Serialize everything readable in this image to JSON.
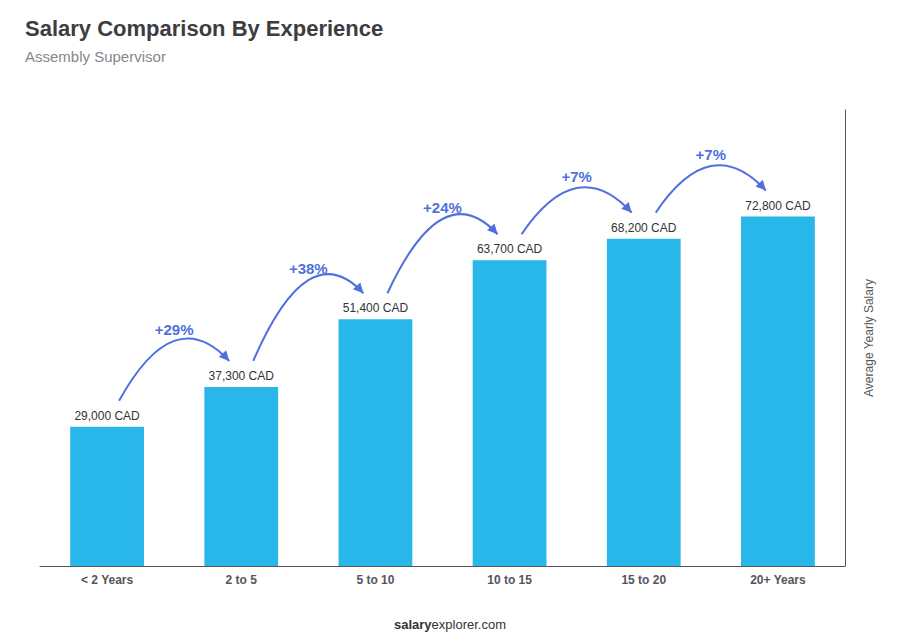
{
  "chart_data": {
    "type": "bar",
    "title": "Salary Comparison By Experience",
    "subtitle": "Assembly Supervisor",
    "categories": [
      "< 2 Years",
      "2 to 5",
      "5 to 10",
      "10 to 15",
      "15 to 20",
      "20+ Years"
    ],
    "values": [
      29000,
      37300,
      51400,
      63700,
      68200,
      72800
    ],
    "value_labels": [
      "29,000 CAD",
      "37,300 CAD",
      "51,400 CAD",
      "63,700 CAD",
      "68,200 CAD",
      "72,800 CAD"
    ],
    "data_labels": true,
    "annotations": [
      "+29%",
      "+38%",
      "+24%",
      "+7%",
      "+7%"
    ],
    "ylabel": "Average Yearly Salary",
    "footer": [
      "salary",
      "explorer.com"
    ],
    "color": "#29b6e8",
    "ylim": [
      0,
      95000
    ],
    "tick_labels": "x",
    "grid": false
  }
}
